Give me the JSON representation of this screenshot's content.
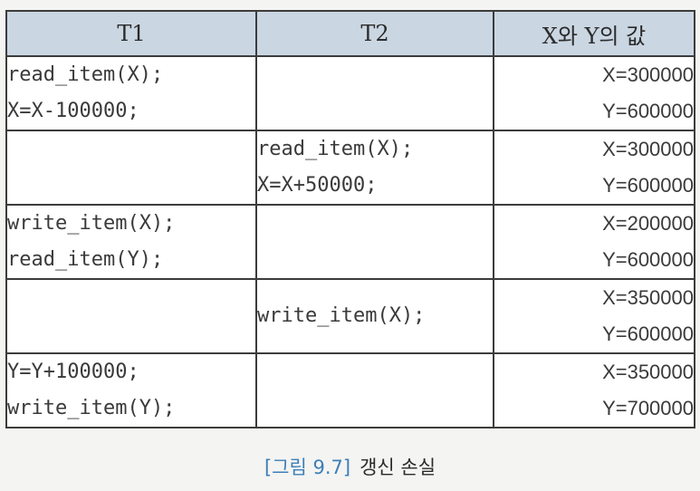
{
  "table": {
    "headers": [
      "T1",
      "T2",
      "X와 Y의 값"
    ],
    "rows": [
      {
        "t1": [
          "read_item(X);",
          "X=X-100000;"
        ],
        "t2": [],
        "values": [
          "X=300000",
          "Y=600000"
        ]
      },
      {
        "t1": [],
        "t2": [
          "read_item(X);",
          "X=X+50000;"
        ],
        "values": [
          "X=300000",
          "Y=600000"
        ]
      },
      {
        "t1": [
          "write_item(X);",
          "read_item(Y);"
        ],
        "t2": [],
        "values": [
          "X=200000",
          "Y=600000"
        ]
      },
      {
        "t1": [],
        "t2": [
          "write_item(X);"
        ],
        "values": [
          "X=350000",
          "Y=600000"
        ]
      },
      {
        "t1": [
          "Y=Y+100000;",
          "write_item(Y);"
        ],
        "t2": [],
        "values": [
          "X=350000",
          "Y=700000"
        ]
      }
    ]
  },
  "caption": {
    "label": "[그림 9.7]",
    "text": "갱신 손실"
  },
  "colors": {
    "header_bg": "#cad6e2",
    "border": "#3c3c3c",
    "caption_label": "#3d7fb8"
  }
}
